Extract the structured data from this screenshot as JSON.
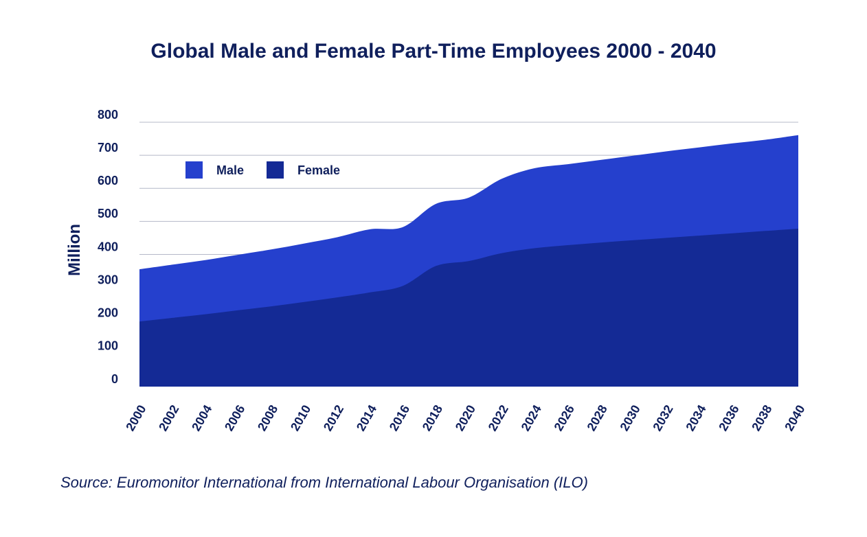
{
  "chart_data": {
    "type": "area",
    "title": "Global Male and Female Part-Time Employees 2000 - 2040",
    "ylabel": "Million",
    "xlabel": "",
    "ylim": [
      0,
      800
    ],
    "yticks": [
      0,
      100,
      200,
      300,
      400,
      500,
      600,
      700,
      800
    ],
    "x": [
      2000,
      2002,
      2004,
      2006,
      2008,
      2010,
      2012,
      2014,
      2016,
      2018,
      2020,
      2022,
      2024,
      2026,
      2028,
      2030,
      2032,
      2034,
      2036,
      2038,
      2040
    ],
    "stacked": true,
    "grid": true,
    "legend": "top-left",
    "series": [
      {
        "name": "Female",
        "color": "#142a95",
        "values": [
          197,
          208,
          219,
          231,
          243,
          256,
          270,
          285,
          305,
          365,
          380,
          404,
          419,
          428,
          436,
          443,
          450,
          457,
          464,
          471,
          478
        ]
      },
      {
        "name": "Male",
        "color": "#2540cd",
        "values": [
          158,
          161,
          164,
          168,
          172,
          177,
          182,
          191,
          178,
          188,
          192,
          225,
          242,
          245,
          250,
          256,
          262,
          267,
          272,
          276,
          283
        ]
      }
    ],
    "legend_order": [
      "Male",
      "Female"
    ]
  },
  "source": "Source: Euromonitor International from International Labour Organisation (ILO)"
}
